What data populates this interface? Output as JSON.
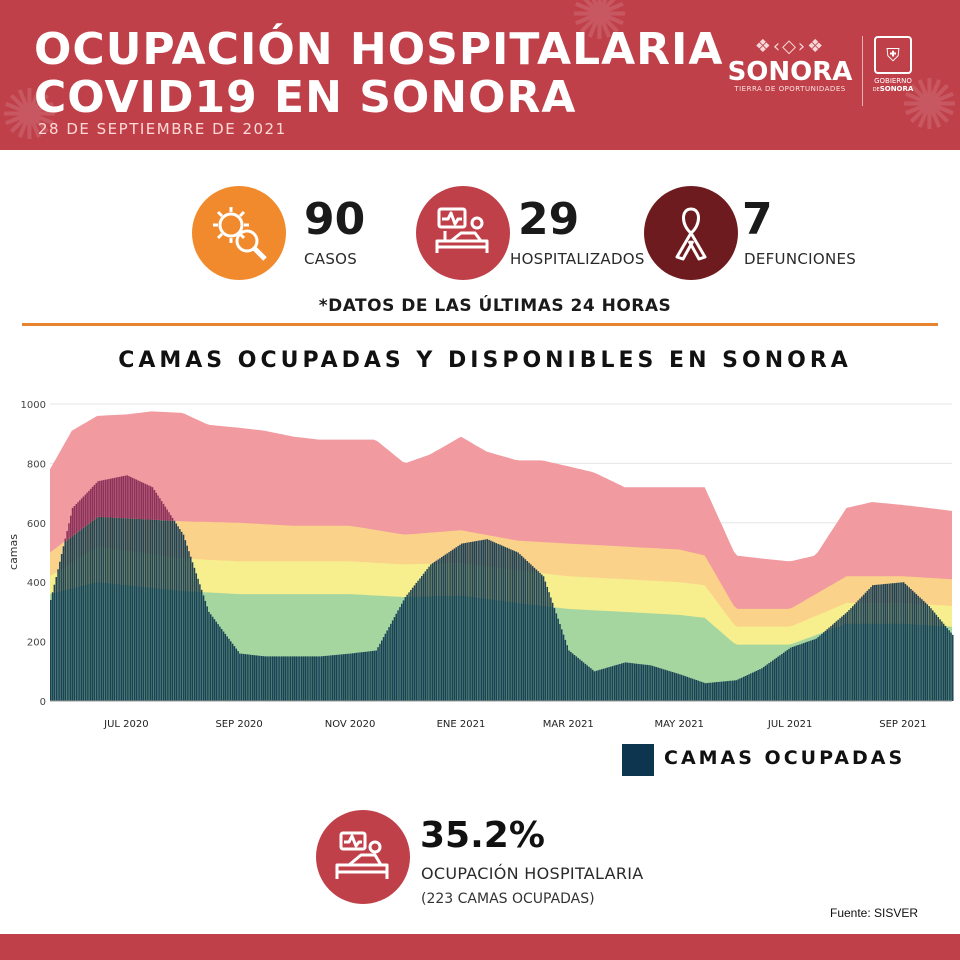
{
  "header": {
    "title_line1": "OCUPACIÓN HOSPITALARIA",
    "title_line2": "COVID19 EN SONORA",
    "date": "28 DE SEPTIEMBRE DE 2021",
    "logo_word": "SONORA",
    "logo_tagline": "TIERRA DE OPORTUNIDADES",
    "gov_word_1": "GOBIERNO",
    "gov_word_2": "SONORA",
    "gov_word_small": "DE"
  },
  "stats": [
    {
      "value": "90",
      "label": "CASOS",
      "color": "#f08a2c",
      "icon": "virus-magnifier-icon"
    },
    {
      "value": "29",
      "label": "HOSPITALIZADOS",
      "color": "#c0404a",
      "icon": "hospital-bed-icon"
    },
    {
      "value": "7",
      "label": "DEFUNCIONES",
      "color": "#6e1b1f",
      "icon": "ribbon-icon"
    }
  ],
  "note": "*DATOS DE LAS ÚLTIMAS 24 HORAS",
  "chart_data": {
    "type": "area",
    "title": "CAMAS OCUPADAS Y DISPONIBLES EN SONORA",
    "ylabel": "camas",
    "xlabel": "",
    "ylim": [
      0,
      1000
    ],
    "yticks": [
      0,
      200,
      400,
      600,
      800,
      1000
    ],
    "xtick_labels": [
      "JUL 2020",
      "SEP 2020",
      "NOV 2020",
      "ENE 2021",
      "MAR 2021",
      "MAY 2021",
      "JUL 2021",
      "SEP 2021"
    ],
    "grid": true,
    "x_start": "2020-05-20",
    "x_end": "2021-09-28",
    "colors": {
      "total_beds": "#f19aa0",
      "orange_threshold": "#fbd28a",
      "yellow_threshold": "#f7ef8e",
      "green_threshold": "#a6d6a0",
      "occupied": "#0d3550",
      "excess": "#7a1f4e"
    },
    "series": [
      {
        "name": "total_beds",
        "x": [
          "2020-05-20",
          "2020-06-01",
          "2020-06-15",
          "2020-07-01",
          "2020-07-15",
          "2020-08-01",
          "2020-08-15",
          "2020-09-01",
          "2020-09-15",
          "2020-10-01",
          "2020-10-15",
          "2020-11-01",
          "2020-11-15",
          "2020-12-01",
          "2020-12-15",
          "2021-01-01",
          "2021-01-15",
          "2021-02-01",
          "2021-02-15",
          "2021-03-01",
          "2021-03-15",
          "2021-04-01",
          "2021-04-15",
          "2021-05-01",
          "2021-05-15",
          "2021-06-01",
          "2021-06-15",
          "2021-07-01",
          "2021-07-15",
          "2021-08-01",
          "2021-08-15",
          "2021-09-01",
          "2021-09-15",
          "2021-09-28"
        ],
        "values": [
          780,
          910,
          960,
          965,
          975,
          970,
          930,
          920,
          910,
          890,
          880,
          880,
          880,
          800,
          830,
          890,
          840,
          810,
          810,
          790,
          770,
          720,
          720,
          720,
          720,
          490,
          480,
          470,
          490,
          650,
          670,
          660,
          650,
          640
        ]
      },
      {
        "name": "orange_threshold",
        "x": [
          "2020-05-20",
          "2020-06-15",
          "2020-08-01",
          "2020-09-01",
          "2020-10-01",
          "2020-11-01",
          "2020-12-01",
          "2021-01-01",
          "2021-02-01",
          "2021-03-01",
          "2021-04-01",
          "2021-05-01",
          "2021-05-15",
          "2021-06-01",
          "2021-07-01",
          "2021-08-01",
          "2021-09-01",
          "2021-09-28"
        ],
        "values": [
          500,
          620,
          605,
          600,
          590,
          590,
          560,
          575,
          540,
          530,
          520,
          510,
          490,
          310,
          310,
          420,
          420,
          410
        ]
      },
      {
        "name": "yellow_threshold",
        "x": [
          "2020-05-20",
          "2020-06-15",
          "2020-08-01",
          "2020-09-01",
          "2020-10-01",
          "2020-11-01",
          "2020-12-01",
          "2021-01-01",
          "2021-02-01",
          "2021-03-01",
          "2021-04-01",
          "2021-05-01",
          "2021-05-15",
          "2021-06-01",
          "2021-07-01",
          "2021-08-01",
          "2021-09-01",
          "2021-09-28"
        ],
        "values": [
          420,
          520,
          480,
          470,
          470,
          470,
          460,
          465,
          440,
          420,
          410,
          400,
          390,
          250,
          250,
          330,
          330,
          320
        ]
      },
      {
        "name": "green_threshold",
        "x": [
          "2020-05-20",
          "2020-06-15",
          "2020-08-01",
          "2020-09-01",
          "2020-10-01",
          "2020-11-01",
          "2020-12-01",
          "2021-01-01",
          "2021-02-01",
          "2021-03-01",
          "2021-04-01",
          "2021-05-01",
          "2021-05-15",
          "2021-06-01",
          "2021-07-01",
          "2021-08-01",
          "2021-09-01",
          "2021-09-28"
        ],
        "values": [
          360,
          400,
          370,
          360,
          360,
          360,
          350,
          355,
          330,
          310,
          300,
          290,
          280,
          190,
          190,
          260,
          260,
          250
        ]
      },
      {
        "name": "occupied",
        "x": [
          "2020-05-20",
          "2020-06-01",
          "2020-06-15",
          "2020-07-01",
          "2020-07-15",
          "2020-08-01",
          "2020-08-15",
          "2020-09-01",
          "2020-09-15",
          "2020-10-01",
          "2020-10-15",
          "2020-11-01",
          "2020-11-15",
          "2020-12-01",
          "2020-12-15",
          "2021-01-01",
          "2021-01-15",
          "2021-02-01",
          "2021-02-15",
          "2021-03-01",
          "2021-03-15",
          "2021-04-01",
          "2021-04-15",
          "2021-05-01",
          "2021-05-15",
          "2021-06-01",
          "2021-06-15",
          "2021-07-01",
          "2021-07-15",
          "2021-08-01",
          "2021-08-15",
          "2021-09-01",
          "2021-09-15",
          "2021-09-28"
        ],
        "values": [
          340,
          650,
          740,
          760,
          720,
          560,
          300,
          160,
          150,
          150,
          150,
          160,
          170,
          350,
          460,
          530,
          545,
          500,
          420,
          170,
          100,
          130,
          120,
          90,
          60,
          70,
          110,
          180,
          210,
          300,
          390,
          400,
          320,
          223
        ]
      }
    ]
  },
  "legend": {
    "label": "CAMAS OCUPADAS",
    "color": "#0d3550"
  },
  "occupancy": {
    "value": "35.2%",
    "label": "OCUPACIÓN HOSPITALARIA",
    "sub": "(223 CAMAS OCUPADAS)"
  },
  "source": "Fuente: SISVER"
}
